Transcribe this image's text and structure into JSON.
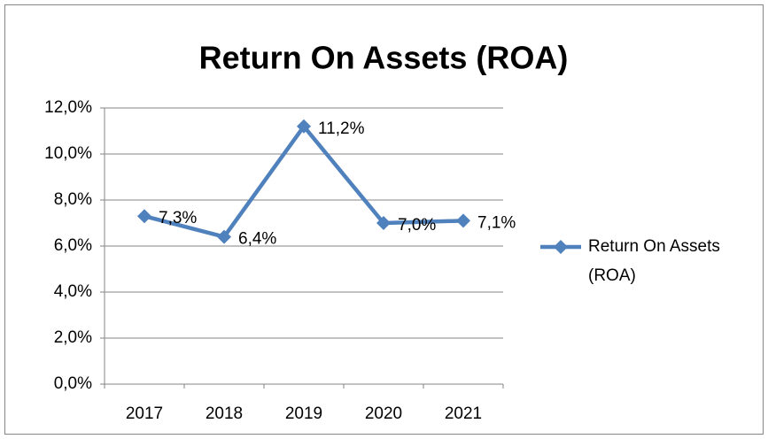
{
  "chart_data": {
    "type": "line",
    "title": "Return On Assets (ROA)",
    "categories": [
      "2017",
      "2018",
      "2019",
      "2020",
      "2021"
    ],
    "series": [
      {
        "name": "Return On Assets (ROA)",
        "color": "#4f81bd",
        "values": [
          7.3,
          6.4,
          11.2,
          7.0,
          7.1
        ],
        "value_labels": [
          "7,3%",
          "6,4%",
          "11,2%",
          "7,0%",
          "7,1%"
        ]
      }
    ],
    "ylim": [
      0,
      12
    ],
    "yticks": [
      {
        "value": 0,
        "label": "0,0%"
      },
      {
        "value": 2,
        "label": "2,0%"
      },
      {
        "value": 4,
        "label": "4,0%"
      },
      {
        "value": 6,
        "label": "6,0%"
      },
      {
        "value": 8,
        "label": "8,0%"
      },
      {
        "value": 10,
        "label": "10,0%"
      },
      {
        "value": 12,
        "label": "12,0%"
      }
    ],
    "grid": true,
    "legend": "right"
  }
}
